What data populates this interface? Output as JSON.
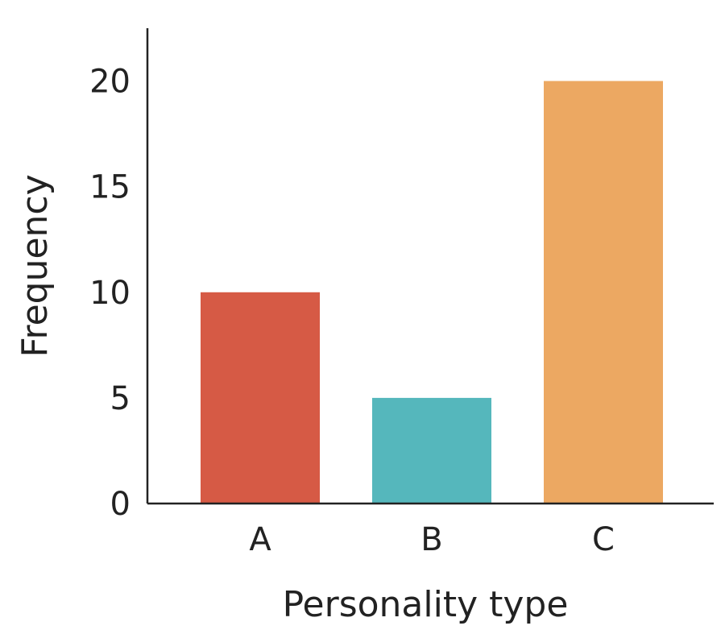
{
  "chart_data": {
    "type": "bar",
    "categories": [
      "A",
      "B",
      "C"
    ],
    "values": [
      10,
      5,
      20
    ],
    "colors": [
      "#d65a45",
      "#55b7bc",
      "#eca862"
    ],
    "xlabel": "Personality type",
    "ylabel": "Frequency",
    "ylim": [
      0,
      22.5
    ],
    "yticks": [
      0,
      5,
      10,
      15,
      20
    ],
    "grid": false
  }
}
